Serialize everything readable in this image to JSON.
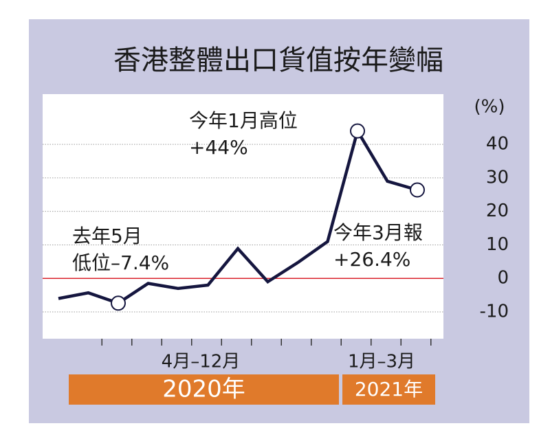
{
  "chart_data": {
    "type": "line",
    "title": "香港整體出口貨值按年變幅",
    "y_unit": "(%)",
    "categories": [
      null,
      null,
      null,
      null,
      null,
      null,
      null,
      null,
      null,
      null,
      null,
      null,
      null
    ],
    "series": [
      {
        "color": "#15163f",
        "values": [
          -6,
          -4.3,
          -7.4,
          -1.5,
          -3,
          -2,
          8.9,
          -1,
          4.7,
          11,
          44,
          29,
          26.4
        ]
      }
    ],
    "ylim": [
      -18,
      55
    ],
    "yticks": [
      -10,
      0,
      10,
      20,
      30,
      40
    ],
    "grid": true,
    "zero_line_color": "#d9202a",
    "x_groups": [
      {
        "label": "4月–12月",
        "year": "2020年"
      },
      {
        "label": "1月–3月",
        "year": "2021年"
      }
    ],
    "annotations": [
      {
        "lines": [
          "去年5月",
          "低位–7.4%"
        ]
      },
      {
        "lines": [
          "今年1月高位",
          "+44%"
        ]
      },
      {
        "lines": [
          "今年3月報",
          "+26.4%"
        ]
      }
    ]
  }
}
